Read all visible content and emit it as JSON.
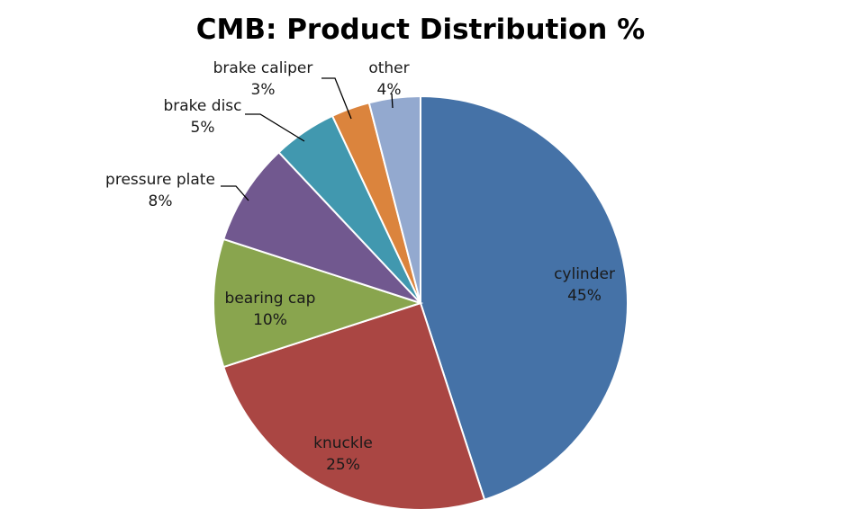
{
  "chart_data": {
    "type": "pie",
    "title": "CMB: Product Distribution %",
    "slices": [
      {
        "label": "cylinder",
        "value": 45,
        "value_label": "45%",
        "color": "#4572A7"
      },
      {
        "label": "knuckle",
        "value": 25,
        "value_label": "25%",
        "color": "#AA4643"
      },
      {
        "label": "bearing cap",
        "value": 10,
        "value_label": "10%",
        "color": "#89A54E"
      },
      {
        "label": "pressure plate",
        "value": 8,
        "value_label": "8%",
        "color": "#71588F"
      },
      {
        "label": "brake disc",
        "value": 5,
        "value_label": "5%",
        "color": "#4198AF"
      },
      {
        "label": "brake caliper",
        "value": 3,
        "value_label": "3%",
        "color": "#DB843D"
      },
      {
        "label": "other",
        "value": 4,
        "value_label": "4%",
        "color": "#93A9CF"
      }
    ],
    "start_angle": "12 o'clock",
    "direction": "clockwise",
    "legend": "none",
    "data_labels": "category name and percentage"
  }
}
